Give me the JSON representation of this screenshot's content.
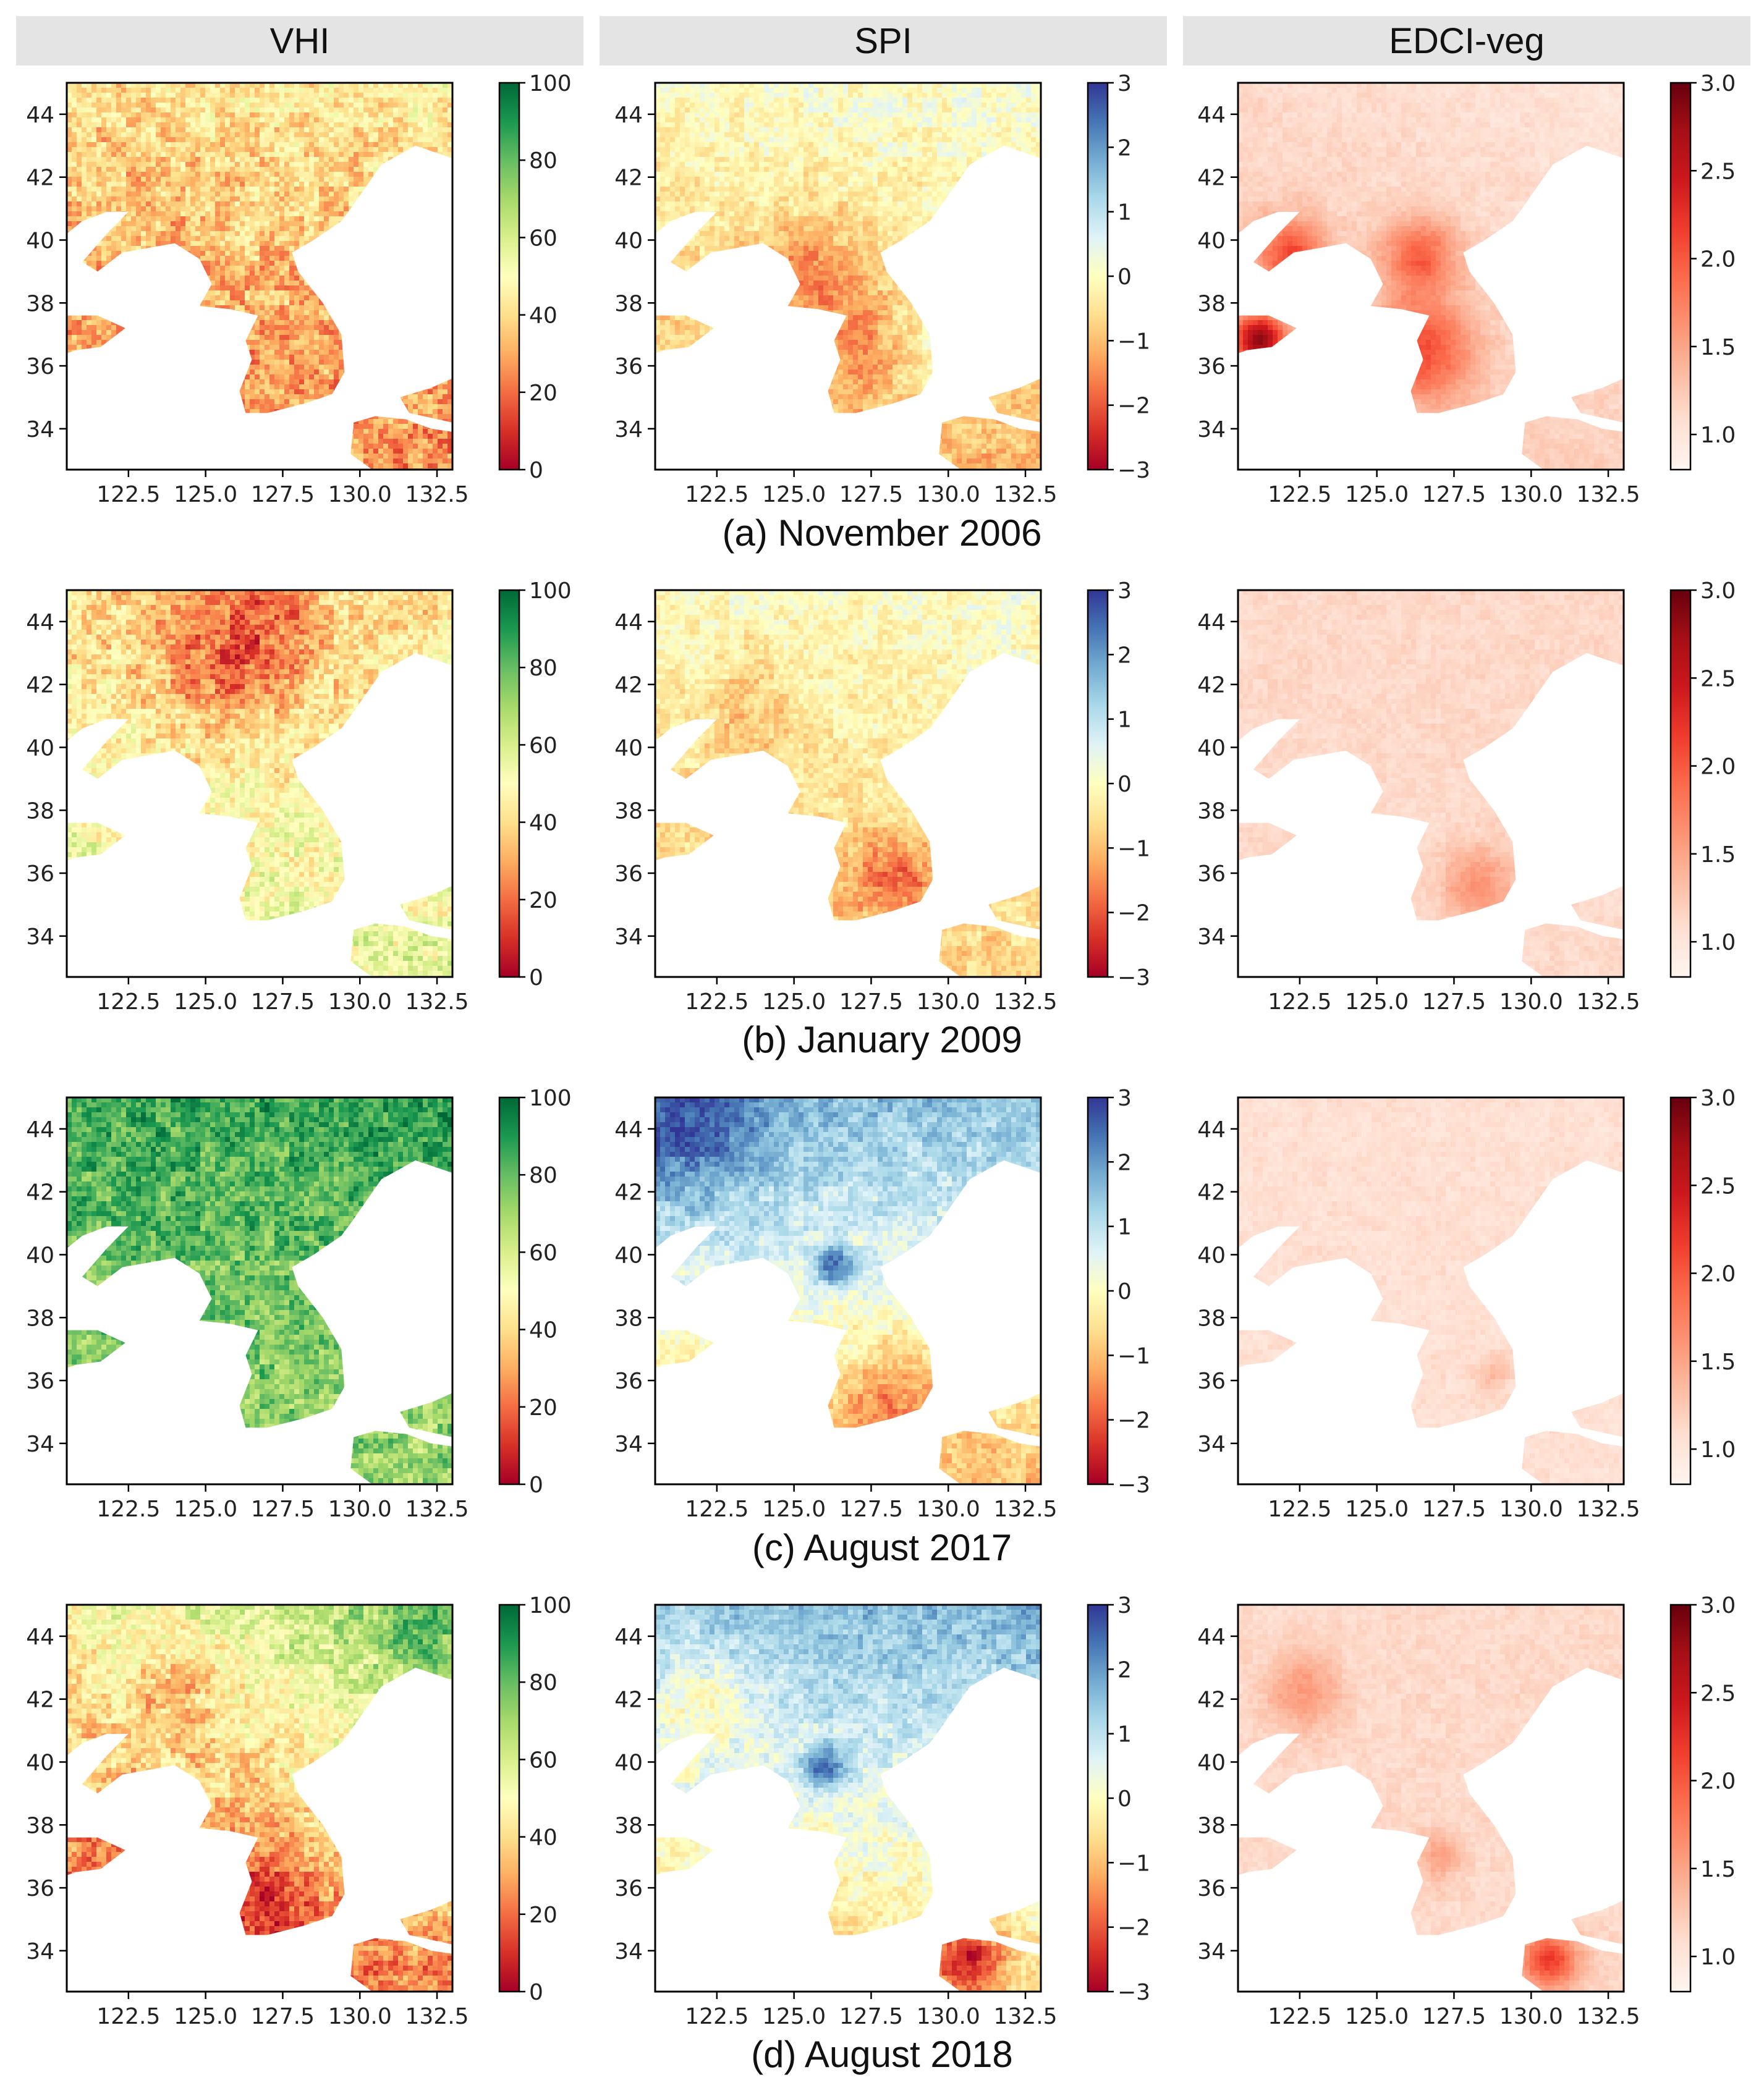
{
  "columns": [
    "VHI",
    "SPI",
    "EDCI-veg"
  ],
  "rows": [
    {
      "caption": "(a) November 2006"
    },
    {
      "caption": "(b) January 2009"
    },
    {
      "caption": "(c) August 2017"
    },
    {
      "caption": "(d) August 2018"
    }
  ],
  "chart_data": [
    {
      "type": "heatmap",
      "panel": "VHI",
      "xlabel": "",
      "ylabel": "",
      "xlim": [
        120.5,
        133.0
      ],
      "ylim": [
        32.7,
        45.0
      ],
      "xticks": [
        122.5,
        125.0,
        127.5,
        130.0,
        132.5
      ],
      "yticks": [
        34,
        36,
        38,
        40,
        42,
        44
      ],
      "colormap": "RdYlGn",
      "colorbar_ticks": [
        "100",
        "80",
        "60",
        "40",
        "20",
        "0"
      ],
      "colorbar_range": [
        0,
        100
      ],
      "months": [
        "November 2006",
        "January 2009",
        "August 2017",
        "August 2018"
      ],
      "dominant_level": [
        "moderate (~25-45)",
        "mixed, west/south ~45-60, north-central ~25",
        "high (~70-90)",
        "low in south/west (~10-30), high in northeast (~70-85)"
      ]
    },
    {
      "type": "heatmap",
      "panel": "SPI",
      "xlim": [
        120.5,
        133.0
      ],
      "ylim": [
        32.7,
        45.0
      ],
      "xticks": [
        122.5,
        125.0,
        127.5,
        130.0,
        132.5
      ],
      "yticks": [
        34,
        36,
        38,
        40,
        42,
        44
      ],
      "colormap": "RdYlBu",
      "colorbar_ticks": [
        "3",
        "2",
        "1",
        "0",
        "−1",
        "−2",
        "−3"
      ],
      "colorbar_range": [
        -3,
        3
      ],
      "months": [
        "November 2006",
        "January 2009",
        "August 2017",
        "August 2018"
      ],
      "dominant_level": [
        "near 0 to -1.5, dry over the peninsula",
        "0 to -1.5, driest in southeast",
        "wet (+1 to +2) in north, dry (-1 to -2) in southeast",
        "wet (+0.5 to +1.5) in north, near 0 over peninsula"
      ]
    },
    {
      "type": "heatmap",
      "panel": "EDCI-veg",
      "xlim": [
        120.5,
        133.0
      ],
      "ylim": [
        32.7,
        45.0
      ],
      "xticks": [
        122.5,
        125.0,
        127.5,
        130.0,
        132.5
      ],
      "yticks": [
        34,
        36,
        38,
        40,
        42,
        44
      ],
      "colormap": "Reds",
      "colorbar_ticks": [
        "3.0",
        "2.5",
        "2.0",
        "1.5",
        "1.0"
      ],
      "colorbar_range": [
        0.8,
        3.0
      ],
      "months": [
        "November 2006",
        "January 2009",
        "August 2017",
        "August 2018"
      ],
      "dominant_level": [
        "1.0-1.3, hotspots up to 3.0 over peninsula",
        "~1.1, hotspots in southeast peninsula",
        "~1.05, nearly uniform",
        "~1.1, hotspots in south and west"
      ]
    }
  ],
  "x_tick_labels": [
    "122.5",
    "125.0",
    "127.5",
    "130.0",
    "132.5"
  ],
  "y_tick_labels": [
    "34",
    "36",
    "38",
    "40",
    "42",
    "44"
  ],
  "colors": {
    "vhi": [
      "#a50026",
      "#d73027",
      "#f46d43",
      "#fdae61",
      "#fee08b",
      "#ffffbf",
      "#d9ef8b",
      "#a6d96a",
      "#66bd63",
      "#1a9850",
      "#006837"
    ],
    "spi": [
      "#a50026",
      "#d73027",
      "#f46d43",
      "#fdae61",
      "#fee090",
      "#ffffbf",
      "#e0f3f8",
      "#abd9e9",
      "#74add1",
      "#4575b4",
      "#313695"
    ],
    "edci": [
      "#fff5f0",
      "#fee0d2",
      "#fcbba1",
      "#fc9272",
      "#fb6a4a",
      "#ef3b2c",
      "#cb181d",
      "#a50f15",
      "#67000d"
    ]
  },
  "fields": {
    "vhi": [
      {
        "base": 33,
        "n": 10,
        "s": 0,
        "e": 3,
        "hot": []
      },
      {
        "base": 48,
        "n": -6,
        "s": 4,
        "e": 0,
        "hot": [
          [
            125.8,
            42.8,
            2.6,
            -22
          ],
          [
            127,
            44,
            1.6,
            -10
          ]
        ]
      },
      {
        "base": 78,
        "n": 4,
        "s": -6,
        "e": 0,
        "hot": [
          [
            133,
            44,
            2.2,
            8
          ]
        ]
      },
      {
        "base": 38,
        "n": 16,
        "s": -14,
        "e": 8,
        "hot": [
          [
            126.8,
            36,
            1.6,
            -18
          ],
          [
            124.2,
            42.5,
            1.8,
            -14
          ],
          [
            132,
            44,
            2,
            14
          ]
        ]
      }
    ],
    "spi": [
      {
        "base": -0.5,
        "n": 0.5,
        "s": -0.2,
        "e": 0.1,
        "hot": [
          [
            125.5,
            38.8,
            2,
            -1.0
          ],
          [
            127.3,
            36.5,
            1.3,
            -0.6
          ],
          [
            129.5,
            36.5,
            1.2,
            0.7
          ]
        ]
      },
      {
        "base": -0.4,
        "n": 0.2,
        "s": -0.4,
        "e": 0.1,
        "hot": [
          [
            128.2,
            35.8,
            1.5,
            -1.3
          ],
          [
            123.5,
            41,
            1.8,
            -0.6
          ]
        ]
      },
      {
        "base": 0.3,
        "n": 0.9,
        "s": -0.8,
        "e": -0.1,
        "hot": [
          [
            121.5,
            44,
            2.5,
            1.2
          ],
          [
            128.2,
            35.4,
            1.6,
            -1.2
          ],
          [
            126.3,
            39.6,
            0.6,
            2.2
          ]
        ]
      },
      {
        "base": 0.4,
        "n": 0.8,
        "s": -0.7,
        "e": 0.2,
        "hot": [
          [
            126,
            39.8,
            0.7,
            2.0
          ],
          [
            130.6,
            33.8,
            1.2,
            -2.2
          ],
          [
            122,
            42,
            1.5,
            -0.8
          ]
        ]
      }
    ],
    "edci": [
      {
        "base": 1.15,
        "n": -0.05,
        "s": 0.05,
        "e": -0.05,
        "hot": [
          [
            126.5,
            36.5,
            1.6,
            0.9
          ],
          [
            121.2,
            36.8,
            0.8,
            1.6
          ],
          [
            122.2,
            39.6,
            1.1,
            0.9
          ],
          [
            126.4,
            39.5,
            1.2,
            0.8
          ]
        ]
      },
      {
        "base": 1.12,
        "n": 0.02,
        "s": 0.02,
        "e": 0,
        "hot": [
          [
            128.3,
            35.6,
            1.2,
            0.5
          ]
        ]
      },
      {
        "base": 1.06,
        "n": 0,
        "s": 0,
        "e": 0,
        "hot": [
          [
            128.8,
            36.2,
            0.6,
            0.25
          ]
        ]
      },
      {
        "base": 1.12,
        "n": 0,
        "s": 0,
        "e": 0,
        "hot": [
          [
            122.6,
            42.2,
            1.2,
            0.45
          ],
          [
            130.6,
            33.7,
            0.9,
            1.1
          ],
          [
            127,
            37,
            0.8,
            0.35
          ]
        ]
      }
    ]
  }
}
